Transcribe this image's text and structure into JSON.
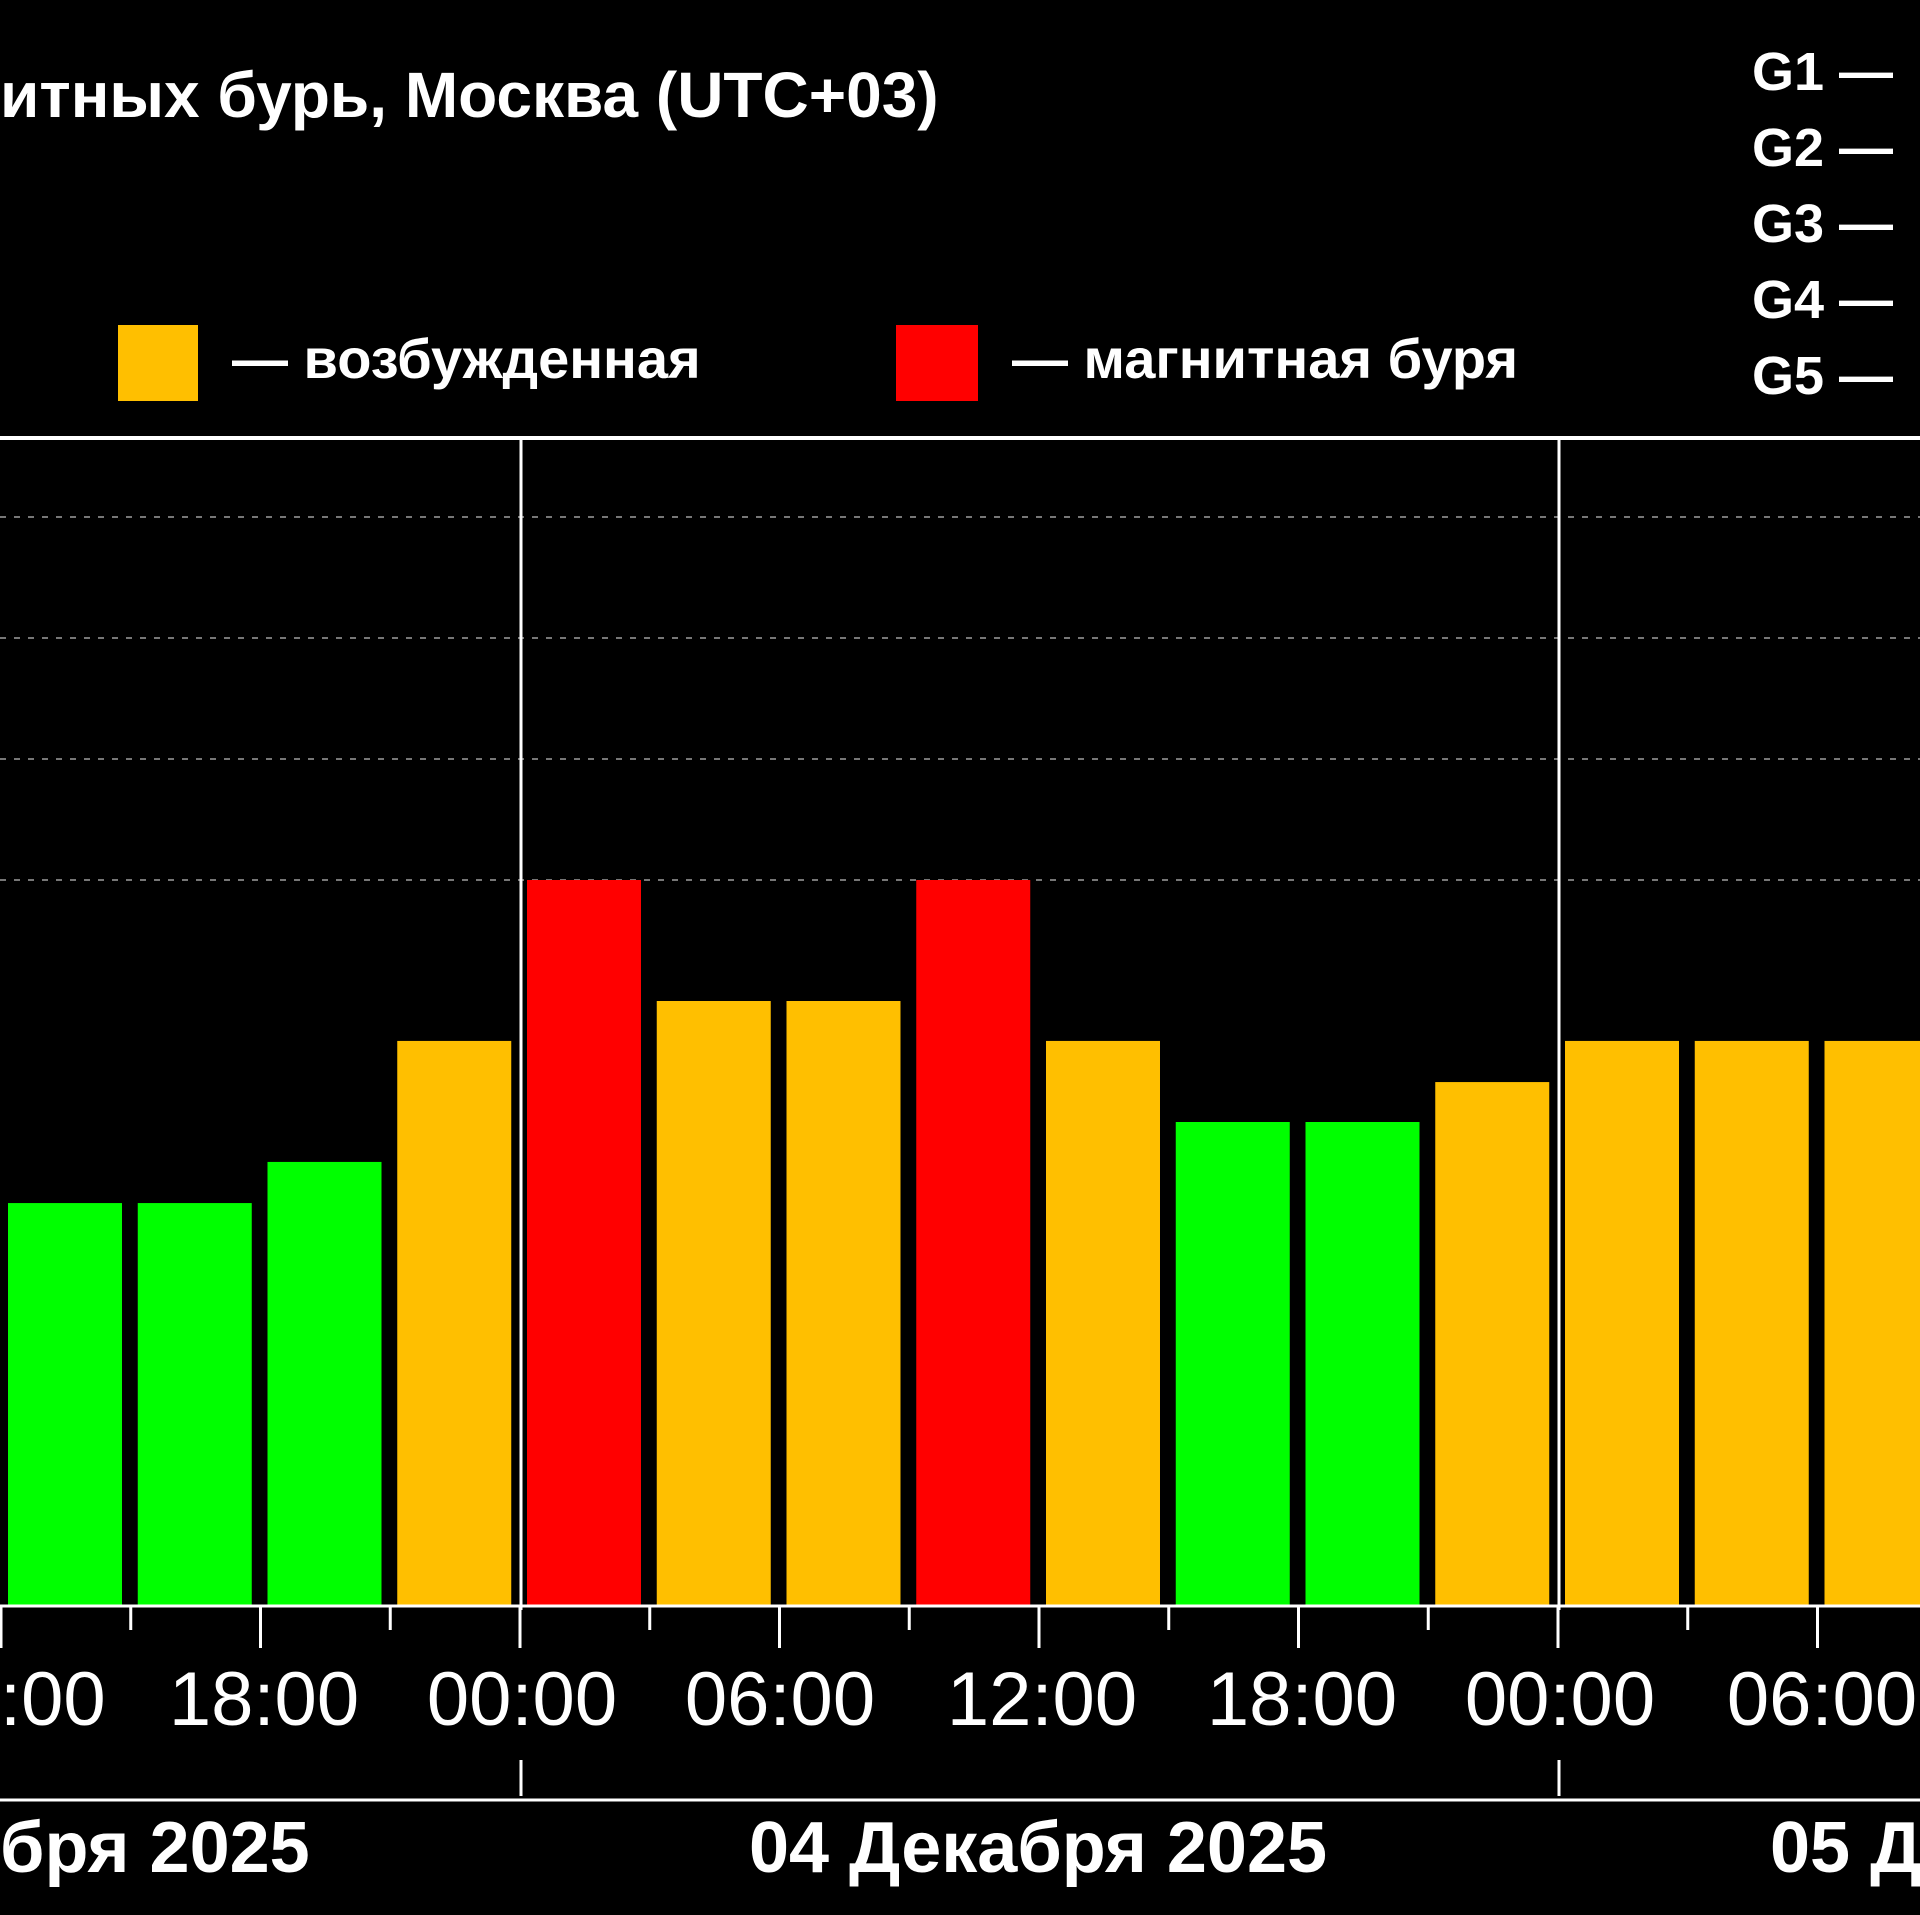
{
  "chart_data": {
    "type": "bar",
    "title": "итных бурь, Москва (UTC+03)",
    "legend": [
      {
        "label": "— возбужденная",
        "color": "#FFBF00"
      },
      {
        "label": "— магнитная буря",
        "color": "#FF0000"
      }
    ],
    "g_scale": [
      "G1 —",
      "G2 —",
      "G3 —",
      "G4 —",
      "G5 —"
    ],
    "time_ticks": [
      ":00",
      "18:00",
      "00:00",
      "06:00",
      "12:00",
      "18:00",
      "00:00",
      "06:00"
    ],
    "dates": [
      "бря 2025",
      "04 Декабря 2025",
      "05 Д"
    ],
    "ylim": [
      0,
      9
    ],
    "grid": true,
    "bars": [
      {
        "value": 3.33,
        "level": "quiet"
      },
      {
        "value": 3.33,
        "level": "quiet"
      },
      {
        "value": 3.67,
        "level": "quiet"
      },
      {
        "value": 4.67,
        "level": "active"
      },
      {
        "value": 6.0,
        "level": "storm"
      },
      {
        "value": 5.0,
        "level": "active"
      },
      {
        "value": 5.0,
        "level": "active"
      },
      {
        "value": 6.0,
        "level": "storm"
      },
      {
        "value": 4.67,
        "level": "active"
      },
      {
        "value": 4.0,
        "level": "quiet"
      },
      {
        "value": 4.0,
        "level": "quiet"
      },
      {
        "value": 4.33,
        "level": "active"
      },
      {
        "value": 4.67,
        "level": "active"
      },
      {
        "value": 4.67,
        "level": "active"
      },
      {
        "value": 4.67,
        "level": "active"
      }
    ],
    "colors": {
      "quiet": "#00FF00",
      "active": "#FFBF00",
      "storm": "#FF0000"
    }
  }
}
